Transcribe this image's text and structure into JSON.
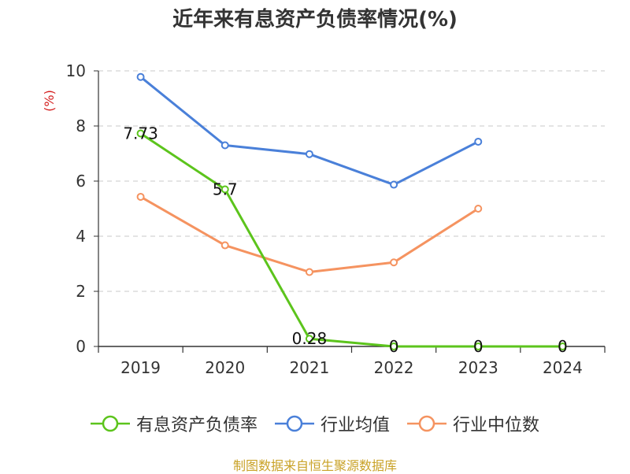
{
  "chart_data": {
    "type": "line",
    "title": "近年来有息资产负债率情况(%)",
    "ylabel": "(%)",
    "xlabel": "",
    "categories": [
      "2019",
      "2020",
      "2021",
      "2022",
      "2023",
      "2024"
    ],
    "ylim": [
      0,
      10
    ],
    "yticks": [
      0,
      2,
      4,
      6,
      8,
      10
    ],
    "grid": true,
    "legend_position": "bottom",
    "series": [
      {
        "name": "有息资产负债率",
        "color": "#5cc41c",
        "values": [
          7.73,
          5.7,
          0.28,
          0,
          0,
          0
        ],
        "data_labels": [
          "7.73",
          "5.7",
          "0.28",
          "0",
          "0",
          "0"
        ]
      },
      {
        "name": "行业均值",
        "color": "#4a80d9",
        "values": [
          9.78,
          7.3,
          6.98,
          5.87,
          7.43,
          null
        ]
      },
      {
        "name": "行业中位数",
        "color": "#f59360",
        "values": [
          5.43,
          3.67,
          2.7,
          3.05,
          5.0,
          null
        ]
      }
    ]
  },
  "source_note": "制图数据来自恒生聚源数据库"
}
